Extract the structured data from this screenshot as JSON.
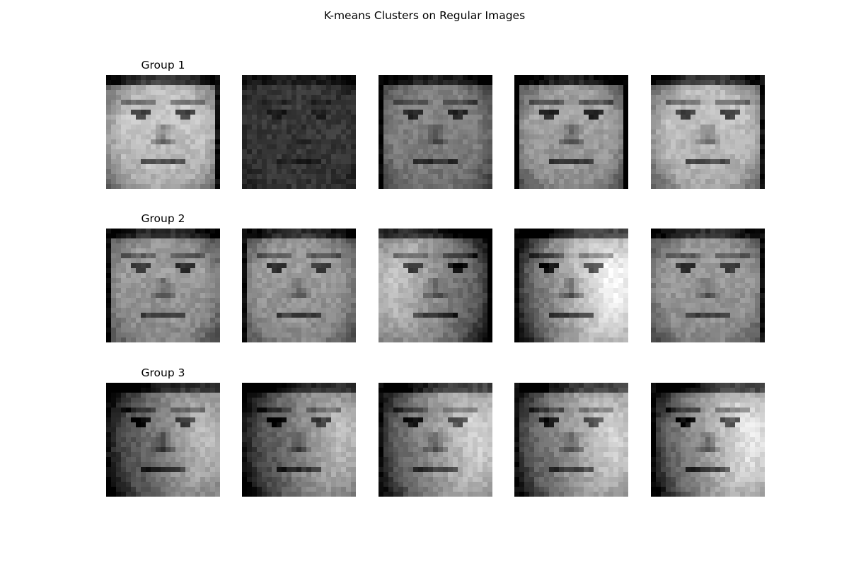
{
  "figure": {
    "title": "K-means Clusters on Regular Images"
  },
  "groups": [
    {
      "label": "Group 1",
      "faces": [
        {
          "brightness": 0.7,
          "contrast": 1.0,
          "light": "even",
          "dark_edge": "right"
        },
        {
          "brightness": 0.22,
          "contrast": 0.7,
          "light": "even",
          "dark_edge": "none"
        },
        {
          "brightness": 0.45,
          "contrast": 1.1,
          "light": "even",
          "dark_edge": "left"
        },
        {
          "brightness": 0.55,
          "contrast": 1.2,
          "light": "even",
          "dark_edge": "both"
        },
        {
          "brightness": 0.68,
          "contrast": 1.0,
          "light": "even",
          "dark_edge": "right"
        }
      ]
    },
    {
      "label": "Group 2",
      "faces": [
        {
          "brightness": 0.55,
          "contrast": 1.0,
          "light": "even",
          "dark_edge": "left"
        },
        {
          "brightness": 0.55,
          "contrast": 1.0,
          "light": "even",
          "dark_edge": "left"
        },
        {
          "brightness": 0.5,
          "contrast": 1.2,
          "light": "left",
          "dark_edge": "right"
        },
        {
          "brightness": 0.62,
          "contrast": 1.1,
          "light": "right",
          "dark_edge": "left"
        },
        {
          "brightness": 0.55,
          "contrast": 1.0,
          "light": "even",
          "dark_edge": "right"
        }
      ]
    },
    {
      "label": "Group 3",
      "faces": [
        {
          "brightness": 0.45,
          "contrast": 1.2,
          "light": "right",
          "dark_edge": "none"
        },
        {
          "brightness": 0.45,
          "contrast": 1.2,
          "light": "right",
          "dark_edge": "none"
        },
        {
          "brightness": 0.55,
          "contrast": 1.0,
          "light": "right",
          "dark_edge": "left"
        },
        {
          "brightness": 0.55,
          "contrast": 1.0,
          "light": "right",
          "dark_edge": "left"
        },
        {
          "brightness": 0.58,
          "contrast": 1.1,
          "light": "right",
          "dark_edge": "left"
        }
      ]
    }
  ]
}
